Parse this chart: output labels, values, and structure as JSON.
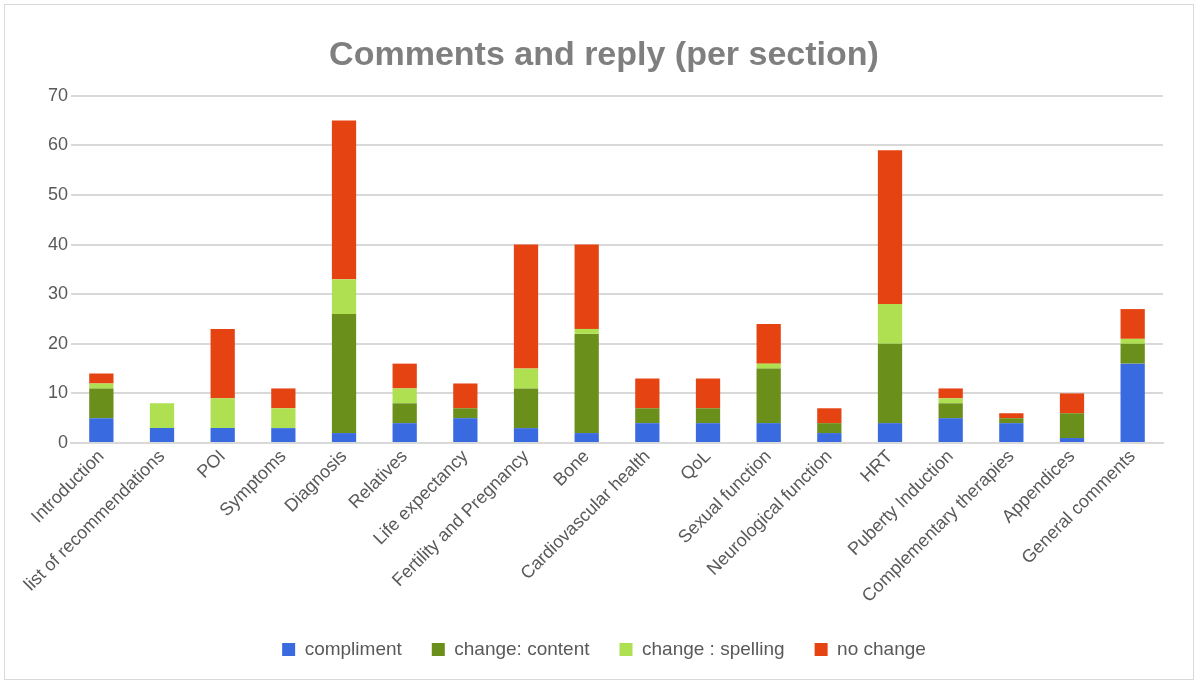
{
  "chart_data": {
    "type": "bar",
    "title": "Comments and reply (per section)",
    "stacked": true,
    "grid": "y",
    "legend": "bottom",
    "categories": [
      "Introduction",
      "list of recommendations",
      "POI",
      "Symptoms",
      "Diagnosis",
      "Relatives",
      "Life expectancy",
      "Fertility and Pregnancy",
      "Bone",
      "Cardiovascular health",
      "QoL",
      "Sexual function",
      "Neurological function",
      "HRT",
      "Puberty Induction",
      "Complementary therapies",
      "Appendices",
      "General comments"
    ],
    "ylim": [
      0,
      70
    ],
    "yticks": [
      0,
      10,
      20,
      30,
      40,
      50,
      60,
      70
    ],
    "series": [
      {
        "name": "compliment",
        "color": "#3a6ae0",
        "values": [
          5,
          3,
          3,
          3,
          2,
          4,
          5,
          3,
          2,
          4,
          4,
          4,
          2,
          4,
          5,
          4,
          1,
          16
        ]
      },
      {
        "name": "change: content",
        "color": "#6a8f1b",
        "values": [
          6,
          0,
          0,
          0,
          24,
          4,
          2,
          8,
          20,
          3,
          3,
          11,
          2,
          16,
          3,
          1,
          5,
          4
        ]
      },
      {
        "name": "change : spelling",
        "color": "#aee052",
        "values": [
          1,
          5,
          6,
          4,
          7,
          3,
          0,
          4,
          1,
          0,
          0,
          1,
          0,
          8,
          1,
          0,
          0,
          1
        ]
      },
      {
        "name": "no change",
        "color": "#e64312",
        "values": [
          2,
          0,
          14,
          4,
          32,
          5,
          5,
          25,
          17,
          6,
          6,
          8,
          3,
          31,
          2,
          1,
          4,
          6
        ]
      }
    ]
  }
}
